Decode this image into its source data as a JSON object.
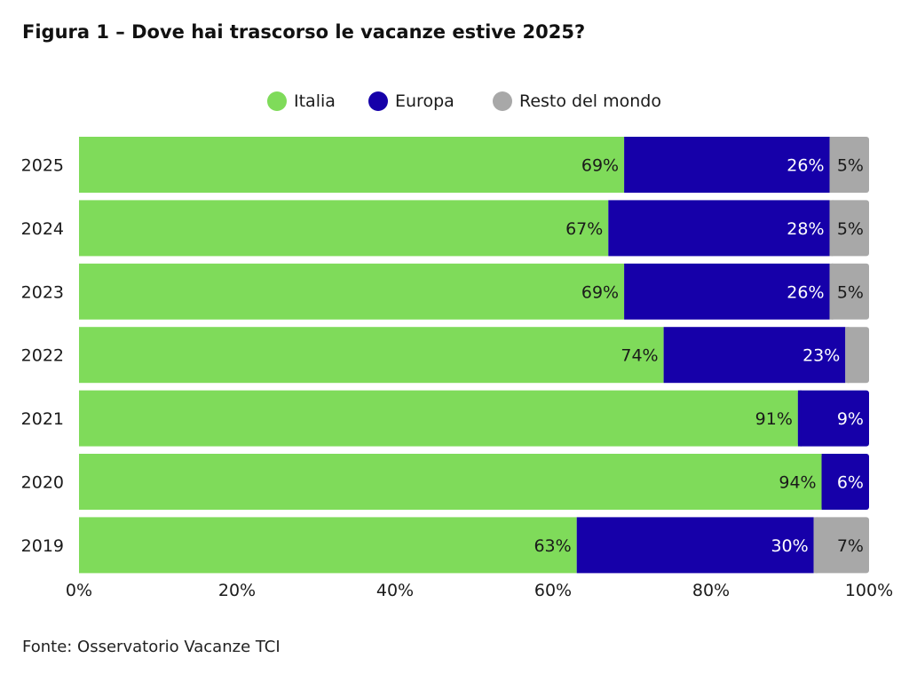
{
  "title": "Figura 1 – Dove hai trascorso le vacanze estive 2025?",
  "source": "Fonte: Osservatorio Vacanze TCI",
  "chart_data": {
    "type": "bar",
    "orientation": "horizontal",
    "stacked": true,
    "title": "Figura 1 – Dove hai trascorso le vacanze estive 2025?",
    "xlabel": "",
    "ylabel": "",
    "xlim": [
      0,
      100
    ],
    "x_ticks": [
      "0%",
      "20%",
      "40%",
      "60%",
      "80%",
      "100%"
    ],
    "legend_position": "top-center",
    "grid": false,
    "categories": [
      "2025",
      "2024",
      "2023",
      "2022",
      "2021",
      "2020",
      "2019"
    ],
    "series": [
      {
        "name": "Italia",
        "color": "#7fdb5a",
        "label_color": "#1a1a1a",
        "values": [
          69,
          67,
          69,
          74,
          91,
          94,
          63
        ],
        "labels": [
          "69%",
          "67%",
          "69%",
          "74%",
          "91%",
          "94%",
          "63%"
        ]
      },
      {
        "name": "Europa",
        "color": "#1600a9",
        "label_color": "#ffffff",
        "values": [
          26,
          28,
          26,
          23,
          9,
          6,
          30
        ],
        "labels": [
          "26%",
          "28%",
          "26%",
          "23%",
          "9%",
          "6%",
          "30%"
        ]
      },
      {
        "name": "Resto del mondo",
        "color": "#a8a8a8",
        "label_color": "#1a1a1a",
        "values": [
          5,
          5,
          5,
          3,
          0,
          0,
          7
        ],
        "labels": [
          "5%",
          "5%",
          "5%",
          "",
          "",
          "",
          "7%"
        ]
      }
    ]
  }
}
